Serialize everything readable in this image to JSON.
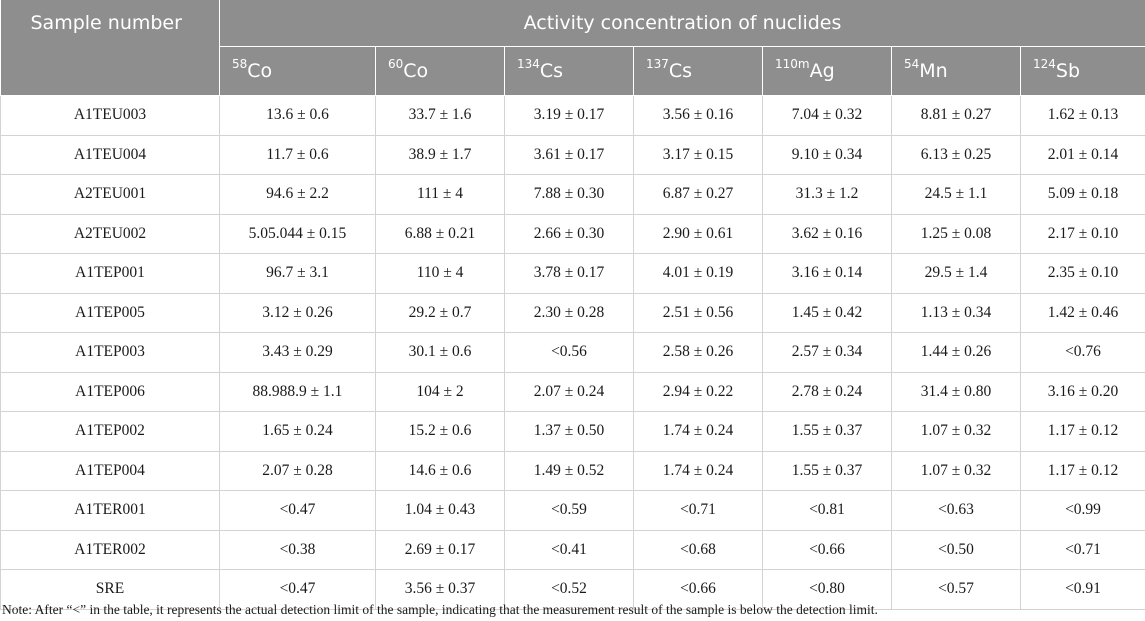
{
  "table": {
    "sample_header": "Sample number",
    "group_header": "Activity concentration of nuclides",
    "nuclides": [
      {
        "mass": "58",
        "symbol": "Co"
      },
      {
        "mass": "60",
        "symbol": "Co"
      },
      {
        "mass": "134",
        "symbol": "Cs"
      },
      {
        "mass": "137",
        "symbol": "Cs"
      },
      {
        "mass": "110m",
        "symbol": "Ag"
      },
      {
        "mass": "54",
        "symbol": "Mn"
      },
      {
        "mass": "124",
        "symbol": "Sb"
      }
    ],
    "rows": [
      {
        "sample": "A1TEU003",
        "values": [
          "13.6 ± 0.6",
          "33.7 ± 1.6",
          "3.19 ± 0.17",
          "3.56 ± 0.16",
          "7.04 ± 0.32",
          "8.81 ± 0.27",
          "1.62 ± 0.13"
        ]
      },
      {
        "sample": "A1TEU004",
        "values": [
          "11.7 ± 0.6",
          "38.9 ± 1.7",
          "3.61 ± 0.17",
          "3.17 ± 0.15",
          "9.10 ± 0.34",
          "6.13 ± 0.25",
          "2.01 ± 0.14"
        ]
      },
      {
        "sample": "A2TEU001",
        "values": [
          "94.6 ± 2.2",
          "111 ± 4",
          "7.88 ± 0.30",
          "6.87 ± 0.27",
          "31.3 ± 1.2",
          "24.5 ± 1.1",
          "5.09 ± 0.18"
        ]
      },
      {
        "sample": "A2TEU002",
        "values": [
          "5.05.044 ± 0.15",
          "6.88 ± 0.21",
          "2.66 ± 0.30",
          "2.90 ± 0.61",
          "3.62 ± 0.16",
          "1.25 ± 0.08",
          "2.17 ± 0.10"
        ]
      },
      {
        "sample": "A1TEP001",
        "values": [
          "96.7 ± 3.1",
          "110 ± 4",
          "3.78 ± 0.17",
          "4.01 ± 0.19",
          "3.16 ± 0.14",
          "29.5 ± 1.4",
          "2.35 ± 0.10"
        ]
      },
      {
        "sample": "A1TEP005",
        "values": [
          "3.12 ± 0.26",
          "29.2 ± 0.7",
          "2.30 ± 0.28",
          "2.51 ± 0.56",
          "1.45 ± 0.42",
          "1.13 ± 0.34",
          "1.42 ± 0.46"
        ]
      },
      {
        "sample": "A1TEP003",
        "values": [
          "3.43 ± 0.29",
          "30.1 ± 0.6",
          "<0.56",
          "2.58 ± 0.26",
          "2.57 ± 0.34",
          "1.44 ± 0.26",
          "<0.76"
        ]
      },
      {
        "sample": "A1TEP006",
        "values": [
          "88.988.9 ± 1.1",
          "104 ± 2",
          "2.07 ± 0.24",
          "2.94 ± 0.22",
          "2.78 ± 0.24",
          "31.4 ± 0.80",
          "3.16 ± 0.20"
        ]
      },
      {
        "sample": "A1TEP002",
        "values": [
          "1.65 ± 0.24",
          "15.2 ± 0.6",
          "1.37 ± 0.50",
          "1.74 ± 0.24",
          "1.55 ± 0.37",
          "1.07 ± 0.32",
          "1.17 ± 0.12"
        ]
      },
      {
        "sample": "A1TEP004",
        "values": [
          "2.07 ± 0.28",
          "14.6 ± 0.6",
          "1.49 ± 0.52",
          "1.74 ± 0.24",
          "1.55 ± 0.37",
          "1.07 ± 0.32",
          "1.17 ± 0.12"
        ]
      },
      {
        "sample": "A1TER001",
        "values": [
          "<0.47",
          "1.04 ± 0.43",
          "<0.59",
          "<0.71",
          "<0.81",
          "<0.63",
          "<0.99"
        ]
      },
      {
        "sample": "A1TER002",
        "values": [
          "<0.38",
          "2.69 ± 0.17",
          "<0.41",
          "<0.68",
          "<0.66",
          "<0.50",
          "<0.71"
        ]
      },
      {
        "sample": "SRE",
        "values": [
          "<0.47",
          "3.56 ± 0.37",
          "<0.52",
          "<0.66",
          "<0.80",
          "<0.57",
          "<0.91"
        ]
      }
    ],
    "note": "Note: After “<” in the table, it represents the actual detection limit of the sample, indicating that the measurement result of the sample is below the detection limit."
  },
  "colors": {
    "header_bg": "#8e8e8e",
    "header_text": "#ffffff",
    "grid": "#d3d3d3"
  }
}
